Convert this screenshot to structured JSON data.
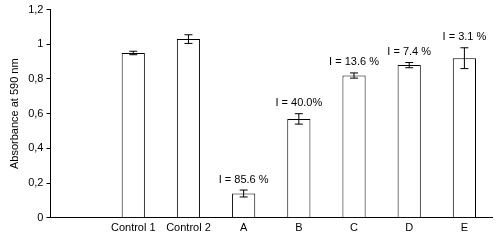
{
  "chart_data": {
    "type": "bar",
    "y_label": "Absorbance at 590 nm",
    "categories": [
      null,
      "Control 1",
      "Control 2",
      "A",
      "B",
      "C",
      "D",
      "E"
    ],
    "values": [
      null,
      0.95,
      1.03,
      0.14,
      0.57,
      0.82,
      0.88,
      0.92
    ],
    "errors": [
      null,
      0.01,
      0.025,
      0.02,
      0.03,
      0.015,
      0.015,
      0.06
    ],
    "annotations": [
      {
        "category": "A",
        "text": "I = 85.6 %"
      },
      {
        "category": "B",
        "text": "I = 40.0%"
      },
      {
        "category": "C",
        "text": "I = 13.6 %"
      },
      {
        "category": "D",
        "text": "I = 7.4 %"
      },
      {
        "category": "E",
        "text": "I = 3.1 %"
      }
    ],
    "color": "#ffffff",
    "ylim": [
      0,
      1.2
    ],
    "yticks": [
      0,
      {
        "value": 0.2,
        "label": "0,2"
      },
      {
        "value": 0.4,
        "label": "0,4"
      },
      {
        "value": 0.6,
        "label": "0,6"
      },
      {
        "value": 0.8,
        "label": "0,8"
      },
      1,
      {
        "value": 1.2,
        "label": "1,2"
      }
    ],
    "grid": false
  }
}
